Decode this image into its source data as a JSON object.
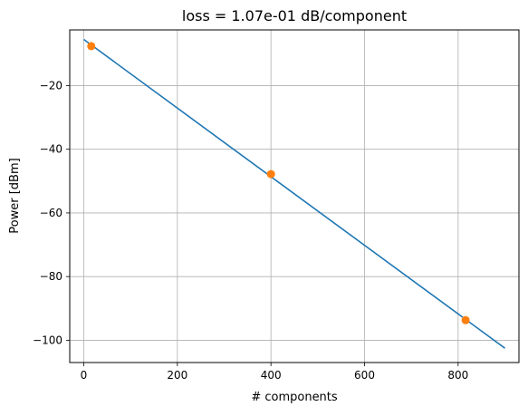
{
  "chart_data": {
    "type": "line",
    "title": "loss = 1.07e-01 dB/component",
    "xlabel": "# components",
    "ylabel": "Power [dBm]",
    "xlim": [
      -30,
      930
    ],
    "ylim": [
      -107,
      -2.5
    ],
    "xticks": [
      0,
      200,
      400,
      600,
      800
    ],
    "yticks": [
      -100,
      -80,
      -60,
      -40,
      -20
    ],
    "x_tick_labels": [
      "0",
      "200",
      "400",
      "600",
      "800"
    ],
    "y_tick_labels": [
      "−100",
      "−80",
      "−60",
      "−40",
      "−20"
    ],
    "grid": true,
    "series": [
      {
        "kind": "line",
        "color": "#1f77b4",
        "x": [
          0,
          900
        ],
        "y": [
          -5.5,
          -102.5
        ]
      },
      {
        "kind": "scatter",
        "color": "#ff7f0e",
        "x": [
          16,
          400,
          816
        ],
        "y": [
          -7.6,
          -47.8,
          -93.7
        ]
      }
    ]
  }
}
